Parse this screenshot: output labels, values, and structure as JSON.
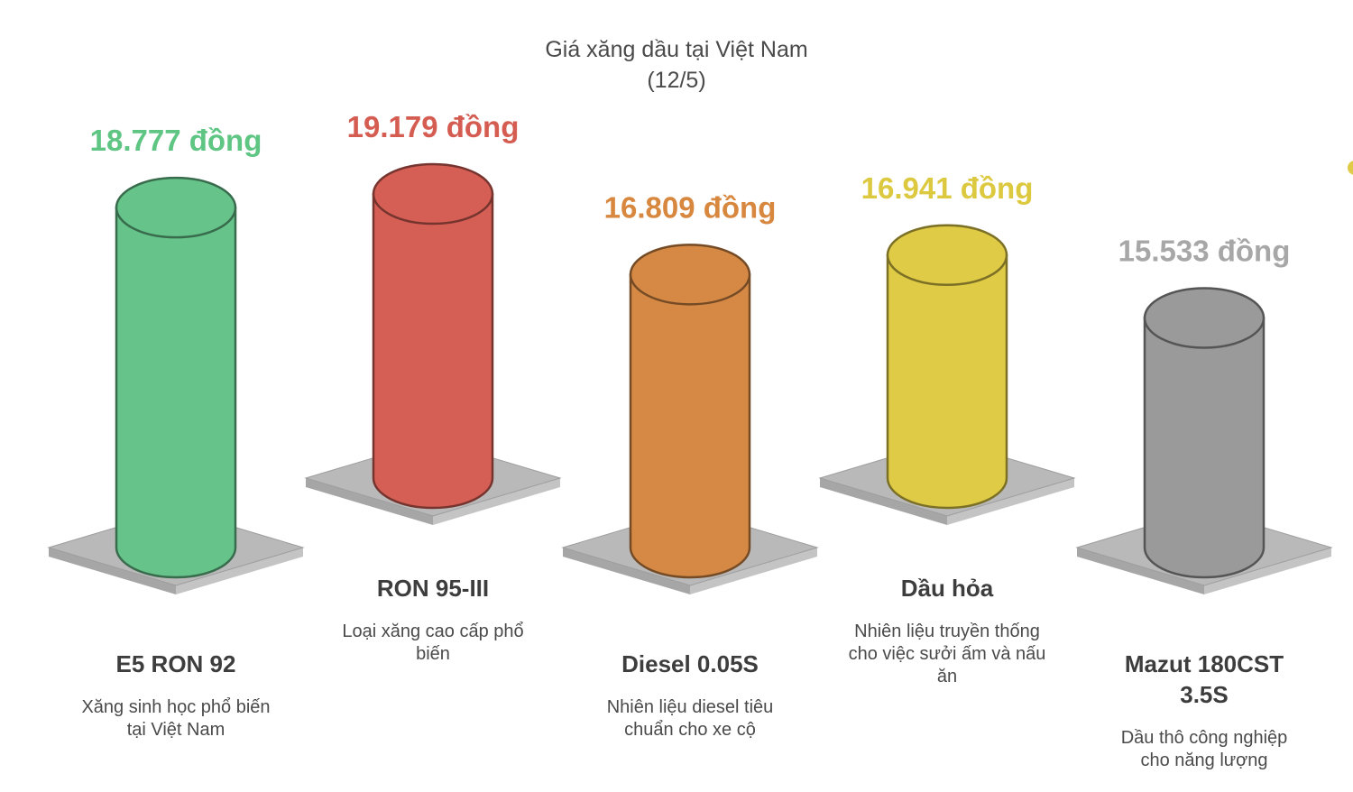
{
  "chart_data": {
    "type": "bar",
    "title": "Giá xăng dầu tại Việt Nam",
    "subtitle": "(12/5)",
    "unit": "đồng",
    "categories": [
      "E5 RON 92",
      "RON 95-III",
      "Diesel 0.05S",
      "Dầu hỏa",
      "Mazut 180CST 3.5S"
    ],
    "values": [
      18777,
      19179,
      16809,
      16941,
      15533
    ],
    "value_labels": [
      "18.777 đồng",
      "19.179 đồng",
      "16.809 đồng",
      "16.941 đồng",
      "15.533 đồng"
    ],
    "name_lines": [
      [
        "E5 RON 92"
      ],
      [
        "RON 95-III"
      ],
      [
        "Diesel 0.05S"
      ],
      [
        "Dầu hỏa"
      ],
      [
        "Mazut 180CST",
        "3.5S"
      ]
    ],
    "descriptions": [
      [
        "Xăng sinh học phổ biến",
        "tại Việt Nam"
      ],
      [
        "Loại xăng cao cấp phổ",
        "biến"
      ],
      [
        "Nhiên liệu diesel tiêu",
        "chuẩn cho xe cộ"
      ],
      [
        "Nhiên liệu truyền thống",
        "cho việc sưởi ấm và nấu",
        "ăn"
      ],
      [
        "Dầu thô công nghiệp",
        "cho năng lượng"
      ]
    ],
    "colors": [
      "#66c48b",
      "#d65f55",
      "#d58945",
      "#dfcb45",
      "#9a9a9a"
    ],
    "label_colors": [
      "#5fc583",
      "#d55c51",
      "#d8873f",
      "#dcc93f",
      "#a7a7a7"
    ],
    "name_color": "#3d3d3d",
    "desc_color": "#4a4a4a",
    "base_color": "#b9b9b9",
    "legend": "none",
    "grid": false
  }
}
